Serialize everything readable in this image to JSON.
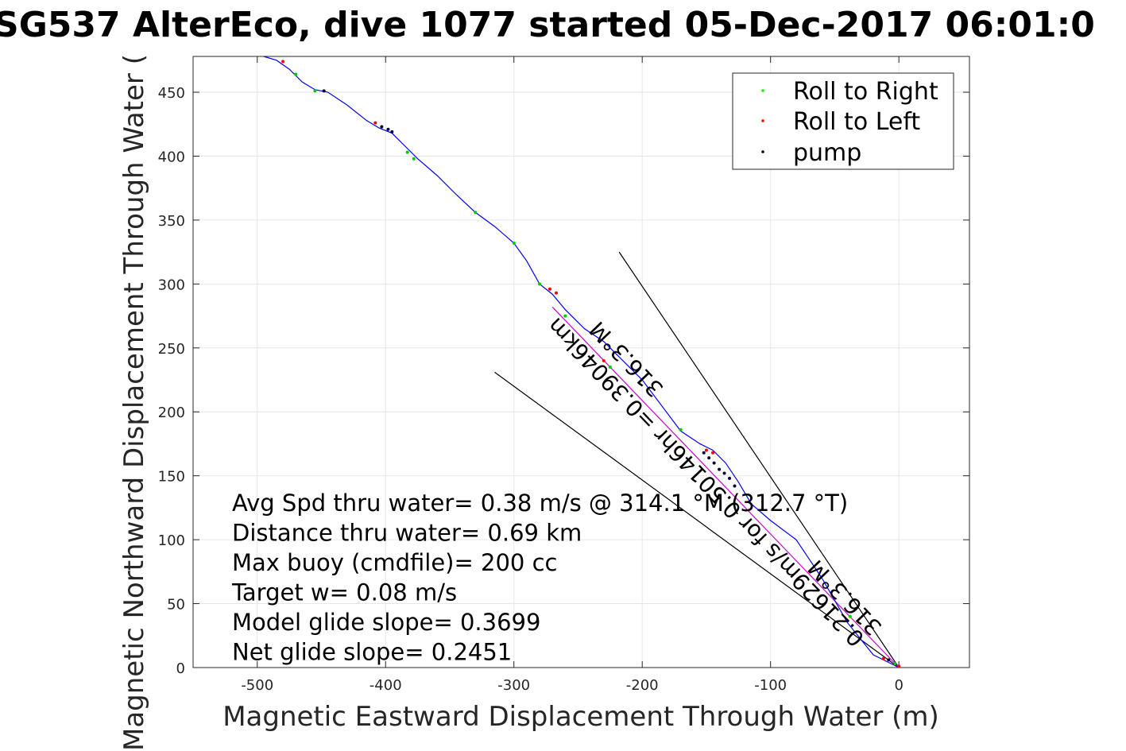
{
  "chart_data": {
    "type": "line",
    "title": "SG537 AlterEco, dive 1077 started 05-Dec-2017 06:01:0",
    "xlabel": "Magnetic Eastward Displacement Through Water (m)",
    "ylabel": "Magnetic Northward Displacement Through Water (",
    "xlim": [
      -550,
      55
    ],
    "ylim": [
      0,
      478
    ],
    "xticks": [
      -500,
      -400,
      -300,
      -200,
      -100,
      0
    ],
    "yticks": [
      0,
      50,
      100,
      150,
      200,
      250,
      300,
      350,
      400,
      450
    ],
    "grid": true,
    "legend_position": "top-right",
    "legend": [
      {
        "label": "Roll to Right",
        "color": "#00ff00"
      },
      {
        "label": "Roll to Left",
        "color": "#ff0000"
      },
      {
        "label": "pump",
        "color": "#000000"
      }
    ],
    "track": {
      "color": "#0000ff",
      "x": [
        0,
        -20,
        -40,
        -60,
        -80,
        -100,
        -115,
        -125,
        -135,
        -145,
        -155,
        -170,
        -185,
        -200,
        -215,
        -230,
        -245,
        -260,
        -270,
        -280,
        -290,
        -300,
        -315,
        -330,
        -345,
        -360,
        -375,
        -385,
        -395,
        -405,
        -415,
        -430,
        -445,
        -455,
        -465,
        -475,
        -485,
        -495
      ],
      "y": [
        0,
        10,
        35,
        70,
        100,
        115,
        128,
        145,
        160,
        170,
        175,
        185,
        205,
        225,
        240,
        255,
        265,
        280,
        292,
        300,
        318,
        332,
        345,
        356,
        370,
        385,
        398,
        408,
        418,
        422,
        428,
        440,
        450,
        452,
        458,
        468,
        475,
        478
      ]
    },
    "direct_line": {
      "color": "#cc00cc",
      "x": [
        0,
        -270
      ],
      "y": [
        0,
        282
      ]
    },
    "roll_right": {
      "x": [
        -3,
        -38,
        -170,
        -225,
        -260,
        -280,
        -300,
        -330,
        -378,
        -383,
        -455,
        -470
      ],
      "y": [
        3,
        40,
        186,
        235,
        275,
        300,
        332,
        356,
        398,
        403,
        451,
        464
      ]
    },
    "roll_left": {
      "x": [
        0,
        -12,
        -145,
        -150,
        -230,
        -267,
        -272,
        -408,
        -480
      ],
      "y": [
        1,
        7,
        168,
        170,
        240,
        293,
        296,
        426,
        474
      ]
    },
    "pump": {
      "x": [
        -8,
        -128,
        -132,
        -136,
        -140,
        -144,
        -148,
        -152,
        -403,
        -398,
        -395,
        -448
      ],
      "y": [
        6,
        142,
        148,
        152,
        155,
        160,
        164,
        168,
        423,
        421,
        419,
        451
      ]
    },
    "wedge_lines": [
      {
        "x": [
          0,
          -218
        ],
        "y": [
          0,
          325
        ]
      },
      {
        "x": [
          0,
          -315
        ],
        "y": [
          0,
          231
        ]
      }
    ],
    "annotations": [
      "Avg Spd thru water=  0.38 m/s @ 314.1 °M (312.7 °T)",
      "Distance thru water=  0.69 km",
      "Max buoy (cmdfile)= 200 cc",
      "Target w= 0.08 m/s",
      "Model glide slope= 0.3699",
      "Net glide slope= 0.2451"
    ],
    "rotated_labels": [
      {
        "text": "0.21629m/s for 0.50146hr =0.39046km",
        "x": -5,
        "y": 20
      },
      {
        "text": "316.3°M",
        "x": -25,
        "y": 40
      },
      {
        "text": "316.3°M",
        "x": -195,
        "y": 225
      }
    ]
  }
}
